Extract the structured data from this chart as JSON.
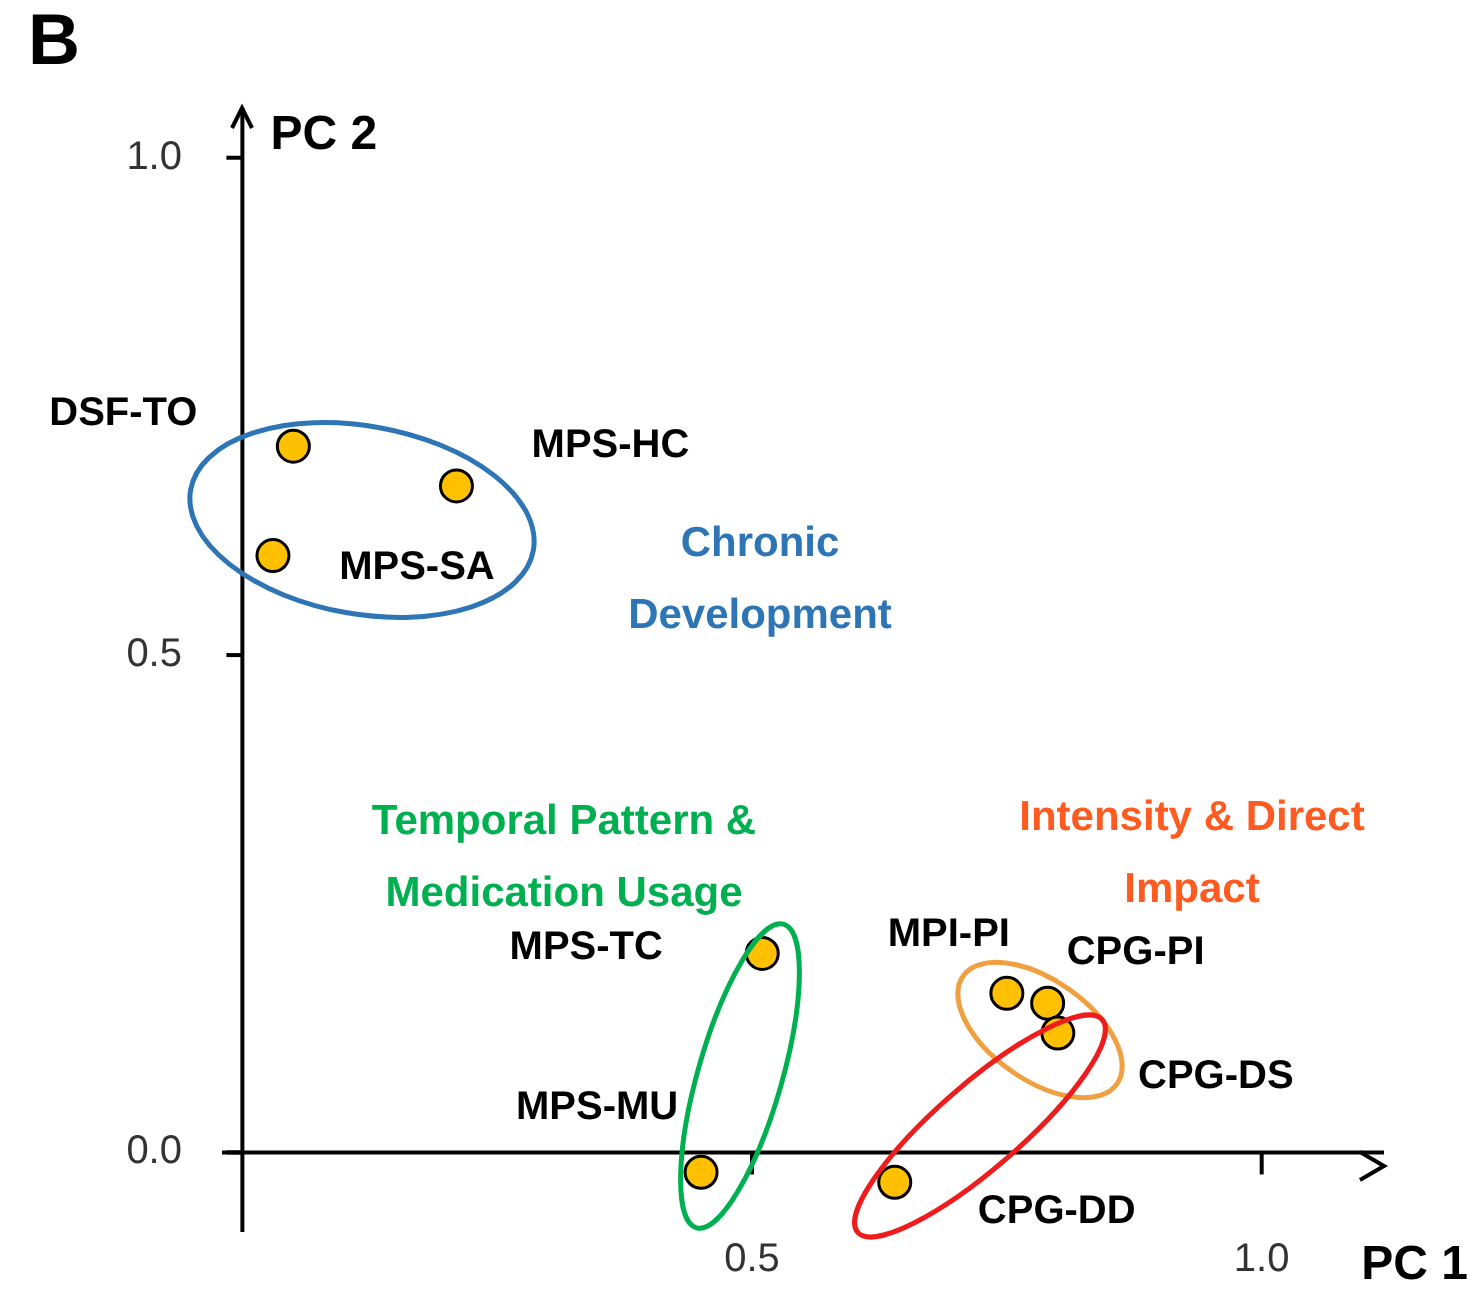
{
  "chart_data": {
    "type": "scatter",
    "title": "B",
    "xlabel": "PC 1",
    "ylabel": "PC 2",
    "x": [
      0.05,
      0.21,
      0.03,
      0.51,
      0.45,
      0.75,
      0.79,
      0.8,
      0.64
    ],
    "series": [
      {
        "color": "#ffc000",
        "values": [
          0.71,
          0.67,
          0.6,
          0.2,
          -0.02,
          0.16,
          0.15,
          0.12,
          -0.03
        ]
      }
    ],
    "xlim": [
      -0.02,
      1.12
    ],
    "ylim": [
      -0.08,
      1.05
    ],
    "xticks": [
      {
        "value": 0.5,
        "label": "0.5"
      },
      {
        "value": 1,
        "label": "1.0"
      }
    ],
    "yticks": [
      {
        "value": 0,
        "label": "0.0"
      },
      {
        "value": 0.5,
        "label": "0.5"
      },
      {
        "value": 1,
        "label": "1.0"
      }
    ],
    "grid": false,
    "legend": false,
    "marker": "circle",
    "annotations": [
      {
        "text": "DSF-TO",
        "x": 0.05,
        "y": 0.71
      },
      {
        "text": "MPS-HC",
        "x": 0.21,
        "y": 0.67
      },
      {
        "text": "MPS-SA",
        "x": 0.03,
        "y": 0.6
      },
      {
        "text": "MPS-TC",
        "x": 0.51,
        "y": 0.2
      },
      {
        "text": "MPS-MU",
        "x": 0.45,
        "y": -0.02
      },
      {
        "text": "MPI-PI",
        "x": 0.75,
        "y": 0.16
      },
      {
        "text": "CPG-PI",
        "x": 0.79,
        "y": 0.15
      },
      {
        "text": "CPG-DS",
        "x": 0.8,
        "y": 0.12
      },
      {
        "text": "CPG-DD",
        "x": 0.64,
        "y": -0.03
      },
      "Chronic Development",
      "Temporal Pattern & Medication Usage",
      "Intensity & Direct Impact"
    ]
  }
}
